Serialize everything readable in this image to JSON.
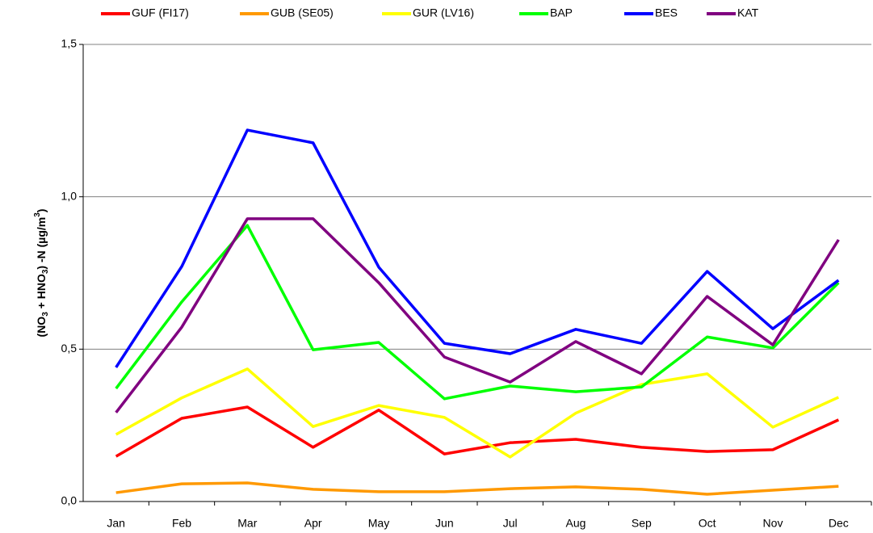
{
  "chart_data": {
    "type": "line",
    "ylabel_parts": [
      "(NO",
      "3",
      " + HNO",
      "3",
      ") -N  (µg/m",
      "3",
      ")"
    ],
    "categories": [
      "Jan",
      "Feb",
      "Mar",
      "Apr",
      "May",
      "Jun",
      "Jul",
      "Aug",
      "Sep",
      "Oct",
      "Nov",
      "Dec"
    ],
    "series": [
      {
        "name": "GUF (FI17)",
        "color": "#ff0000",
        "values": [
          0.148,
          0.273,
          0.31,
          0.178,
          0.3,
          0.156,
          0.193,
          0.204,
          0.178,
          0.164,
          0.17,
          0.268
        ]
      },
      {
        "name": "GUB (SE05)",
        "color": "#ff9900",
        "values": [
          0.029,
          0.058,
          0.061,
          0.04,
          0.032,
          0.032,
          0.042,
          0.048,
          0.04,
          0.024,
          0.037,
          0.05
        ]
      },
      {
        "name": "GUR (LV16)",
        "color": "#ffff00",
        "values": [
          0.22,
          0.34,
          0.435,
          0.246,
          0.315,
          0.276,
          0.146,
          0.29,
          0.384,
          0.419,
          0.244,
          0.342
        ]
      },
      {
        "name": "BAP",
        "color": "#00ff00",
        "values": [
          0.371,
          0.655,
          0.906,
          0.498,
          0.522,
          0.337,
          0.379,
          0.36,
          0.376,
          0.54,
          0.504,
          0.718
        ]
      },
      {
        "name": "BES",
        "color": "#0000ff",
        "values": [
          0.44,
          0.771,
          1.219,
          1.177,
          0.769,
          0.519,
          0.485,
          0.565,
          0.519,
          0.755,
          0.567,
          0.726
        ]
      },
      {
        "name": "KAT",
        "color": "#800080",
        "values": [
          0.292,
          0.572,
          0.928,
          0.928,
          0.718,
          0.474,
          0.392,
          0.525,
          0.419,
          0.673,
          0.514,
          0.859
        ]
      }
    ],
    "ylim": [
      0,
      1.5
    ],
    "yticks": [
      {
        "value": 0,
        "label": "0,0"
      },
      {
        "value": 0.5,
        "label": "0,5"
      },
      {
        "value": 1,
        "label": "1,0"
      },
      {
        "value": 1.5,
        "label": "1,5"
      }
    ],
    "grid": true,
    "legend": "top"
  }
}
